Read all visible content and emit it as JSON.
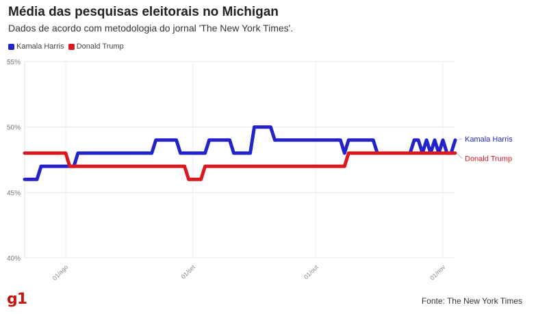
{
  "header": {
    "title": "Média das pesquisas eleitorais no Michigan",
    "subtitle": "Dados de acordo com metodologia do jornal 'The New York Times'."
  },
  "legend": {
    "items": [
      {
        "label": "Kamala Harris",
        "color": "#2323cc"
      },
      {
        "label": "Donald Trump",
        "color": "#d9191f"
      }
    ]
  },
  "footer": {
    "logo": "g1",
    "source": "Fonte: The New York Times"
  },
  "chart_data": {
    "type": "line",
    "x_start": "2024-07-22",
    "xlim": [
      "2024-07-22",
      "2024-11-04"
    ],
    "ylim": [
      40,
      55
    ],
    "y_ticks": [
      40,
      45,
      50,
      55
    ],
    "y_tick_labels": [
      "40%",
      "45%",
      "50%",
      "55%"
    ],
    "x_ticks": [
      "2024-08-01",
      "2024-09-01",
      "2024-10-01",
      "2024-11-01"
    ],
    "x_tick_labels": [
      "01/ago",
      "01/set",
      "01/out",
      "01/nov"
    ],
    "grid": true,
    "legend_position": "top-left",
    "series": [
      {
        "name": "Kamala Harris",
        "color": "#2323cc",
        "points": [
          [
            "2024-07-22",
            46
          ],
          [
            "2024-07-25",
            46
          ],
          [
            "2024-07-26",
            47
          ],
          [
            "2024-08-02",
            47
          ],
          [
            "2024-08-03",
            47
          ],
          [
            "2024-08-04",
            48
          ],
          [
            "2024-08-22",
            48
          ],
          [
            "2024-08-23",
            49
          ],
          [
            "2024-08-28",
            49
          ],
          [
            "2024-08-29",
            48
          ],
          [
            "2024-09-04",
            48
          ],
          [
            "2024-09-05",
            49
          ],
          [
            "2024-09-10",
            49
          ],
          [
            "2024-09-11",
            48
          ],
          [
            "2024-09-15",
            48
          ],
          [
            "2024-09-16",
            50
          ],
          [
            "2024-09-20",
            50
          ],
          [
            "2024-09-21",
            49
          ],
          [
            "2024-10-07",
            49
          ],
          [
            "2024-10-08",
            48
          ],
          [
            "2024-10-09",
            49
          ],
          [
            "2024-10-15",
            49
          ],
          [
            "2024-10-16",
            48
          ],
          [
            "2024-10-24",
            48
          ],
          [
            "2024-10-25",
            49
          ],
          [
            "2024-10-26",
            49
          ],
          [
            "2024-10-27",
            48
          ],
          [
            "2024-10-28",
            49
          ],
          [
            "2024-10-29",
            48
          ],
          [
            "2024-10-30",
            49
          ],
          [
            "2024-10-31",
            48
          ],
          [
            "2024-11-01",
            49
          ],
          [
            "2024-11-02",
            48
          ],
          [
            "2024-11-03",
            48
          ],
          [
            "2024-11-04",
            49
          ]
        ],
        "gap": [
          "2024-10-16",
          "2024-10-24"
        ],
        "end_label": "Kamala Harris"
      },
      {
        "name": "Donald Trump",
        "color": "#d9191f",
        "points": [
          [
            "2024-07-22",
            48
          ],
          [
            "2024-08-01",
            48
          ],
          [
            "2024-08-02",
            47
          ],
          [
            "2024-08-30",
            47
          ],
          [
            "2024-08-31",
            46
          ],
          [
            "2024-09-03",
            46
          ],
          [
            "2024-09-04",
            47
          ],
          [
            "2024-10-08",
            47
          ],
          [
            "2024-10-09",
            48
          ],
          [
            "2024-11-04",
            48
          ]
        ],
        "end_label": "Donald Trump"
      }
    ]
  }
}
